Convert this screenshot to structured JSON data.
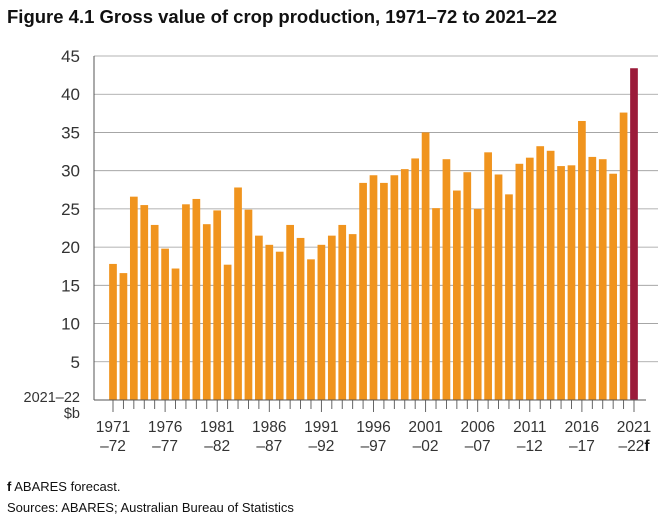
{
  "figure": {
    "title": "Figure 4.1 Gross value of crop production, 1971–72 to 2021–22",
    "footnote_marker": "f",
    "footnote_text": " ABARES forecast.",
    "sources": "Sources: ABARES; Australian Bureau of Statistics"
  },
  "colors": {
    "bar": "#F0941E",
    "forecast_bar": "#9B1B3A",
    "axis": "#555555",
    "grid": "#9a9a9a",
    "text": "#333333"
  },
  "chart_data": {
    "type": "bar",
    "ylabel": "2021–22\n$b",
    "ylim": [
      0,
      45
    ],
    "yticks": [
      5,
      10,
      15,
      20,
      25,
      30,
      35,
      40,
      45
    ],
    "grid": true,
    "forecast_index": 50,
    "x_tick_labels": [
      {
        "index": 0,
        "top": "1971",
        "bottom": "–72",
        "suffix": ""
      },
      {
        "index": 5,
        "top": "1976",
        "bottom": "–77",
        "suffix": ""
      },
      {
        "index": 10,
        "top": "1981",
        "bottom": "–82",
        "suffix": ""
      },
      {
        "index": 15,
        "top": "1986",
        "bottom": "–87",
        "suffix": ""
      },
      {
        "index": 20,
        "top": "1991",
        "bottom": "–92",
        "suffix": ""
      },
      {
        "index": 25,
        "top": "1996",
        "bottom": "–97",
        "suffix": ""
      },
      {
        "index": 30,
        "top": "2001",
        "bottom": "–02",
        "suffix": ""
      },
      {
        "index": 35,
        "top": "2006",
        "bottom": "–07",
        "suffix": ""
      },
      {
        "index": 40,
        "top": "2011",
        "bottom": "–12",
        "suffix": ""
      },
      {
        "index": 45,
        "top": "2016",
        "bottom": "–17",
        "suffix": ""
      },
      {
        "index": 50,
        "top": "2021",
        "bottom": "–22",
        "suffix": "f"
      }
    ],
    "categories": [
      "1971–72",
      "1972–73",
      "1973–74",
      "1974–75",
      "1975–76",
      "1976–77",
      "1977–78",
      "1978–79",
      "1979–80",
      "1980–81",
      "1981–82",
      "1982–83",
      "1983–84",
      "1984–85",
      "1985–86",
      "1986–87",
      "1987–88",
      "1988–89",
      "1989–90",
      "1990–91",
      "1991–92",
      "1992–93",
      "1993–94",
      "1994–95",
      "1995–96",
      "1996–97",
      "1997–98",
      "1998–99",
      "1999–00",
      "2000–01",
      "2001–02",
      "2002–03",
      "2003–04",
      "2004–05",
      "2005–06",
      "2006–07",
      "2007–08",
      "2008–09",
      "2009–10",
      "2010–11",
      "2011–12",
      "2012–13",
      "2013–14",
      "2014–15",
      "2015–16",
      "2016–17",
      "2017–18",
      "2018–19",
      "2019–20",
      "2020–21",
      "2021–22"
    ],
    "values": [
      17.8,
      16.6,
      26.6,
      25.5,
      22.9,
      19.8,
      17.2,
      25.6,
      26.3,
      23.0,
      24.8,
      17.7,
      27.8,
      24.9,
      21.5,
      20.3,
      19.4,
      22.9,
      21.2,
      18.4,
      20.3,
      21.5,
      22.9,
      21.7,
      28.4,
      29.4,
      28.4,
      29.4,
      30.2,
      31.6,
      35.0,
      25.1,
      31.5,
      27.4,
      29.8,
      25.0,
      32.4,
      29.5,
      26.9,
      30.9,
      31.7,
      33.2,
      32.6,
      30.6,
      30.7,
      36.5,
      31.8,
      31.5,
      29.6,
      37.6,
      43.4
    ]
  }
}
